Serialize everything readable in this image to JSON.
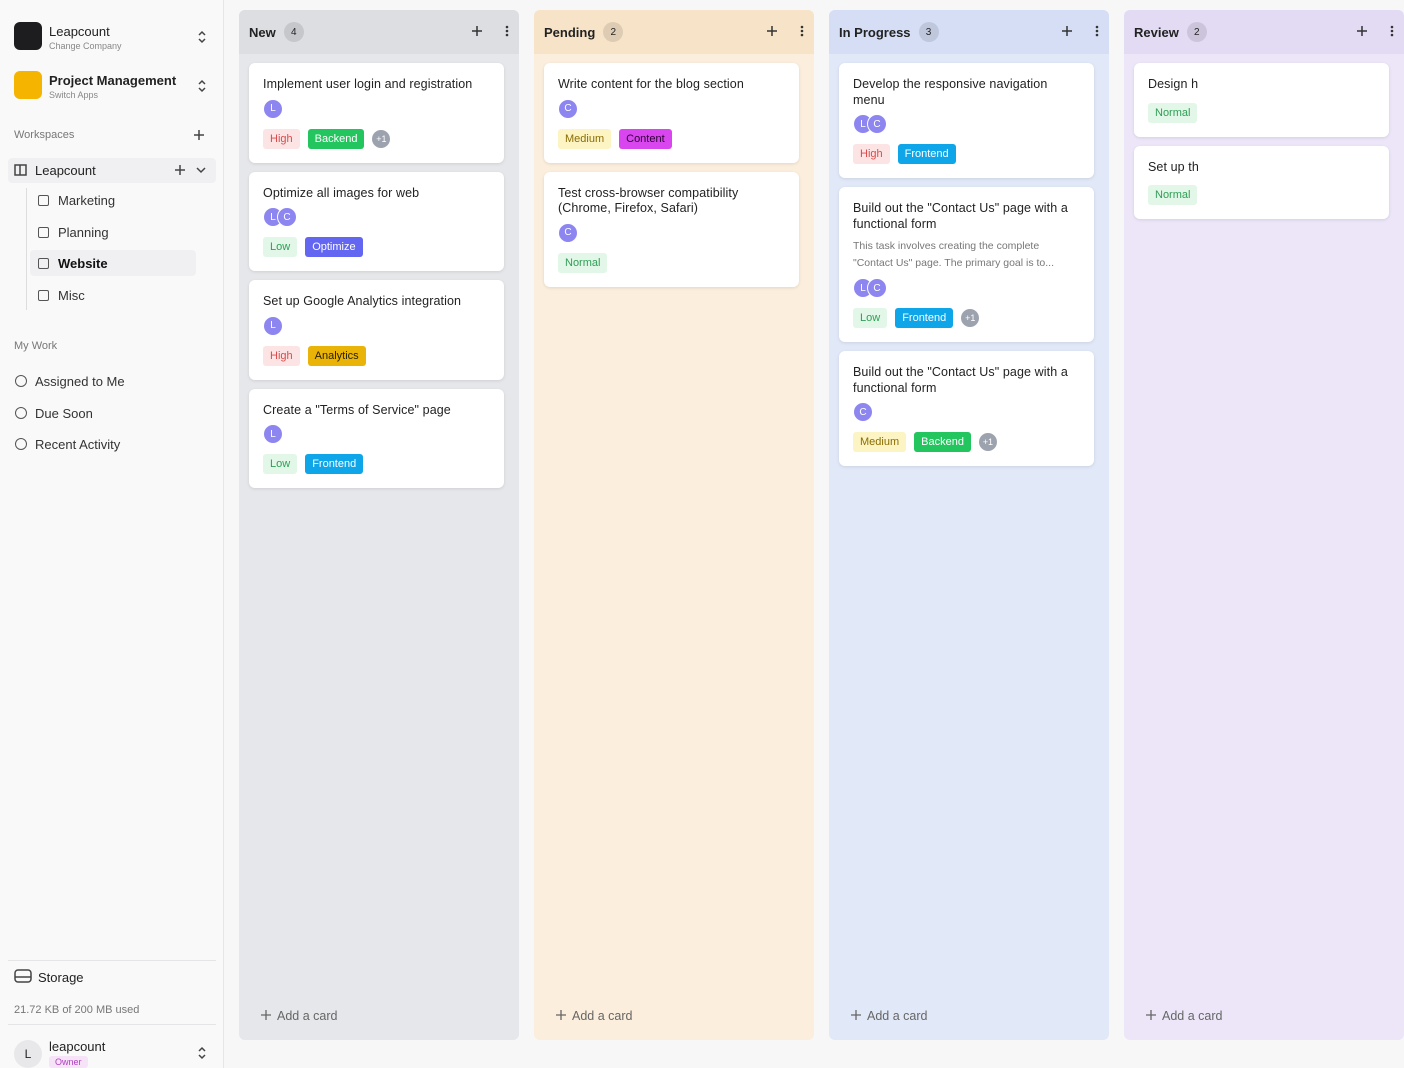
{
  "sidebar": {
    "org": {
      "name": "Leapcount",
      "subtitle": "Change Company"
    },
    "app": {
      "name": "Project Management",
      "subtitle": "Switch Apps"
    },
    "workspaces_label": "Workspaces",
    "workspace": {
      "name": "Leapcount",
      "boards": [
        "Marketing",
        "Planning",
        "Website",
        "Misc"
      ]
    },
    "my_work_label": "My Work",
    "my_work": [
      "Assigned to Me",
      "Due Soon",
      "Recent Activity"
    ],
    "storage": {
      "label": "Storage",
      "usage": "21.72 KB of 200 MB used"
    },
    "user": {
      "initial": "L",
      "name": "leapcount",
      "role": "Owner"
    }
  },
  "columns": [
    {
      "title": "New",
      "count": 4,
      "color": "#e6e7ea",
      "header_color": "#dcdee2",
      "add_label": "Add a card",
      "cards": [
        {
          "title": "Implement user login and registration",
          "avatars": [
            "L"
          ],
          "priority": {
            "label": "High",
            "color": "#dc4a4a",
            "background": "#fde4e4"
          },
          "tag": {
            "label": "Backend",
            "color": "#22c55e",
            "text": "#ffffff"
          },
          "extra": "+1"
        },
        {
          "title": "Optimize all images for web",
          "avatars": [
            "L",
            "C"
          ],
          "priority": {
            "label": "Low",
            "color": "#2f9e55",
            "background": "#e2f7e8"
          },
          "tag": {
            "label": "Optimize",
            "color": "#6366f1",
            "text": "#ffffff"
          }
        },
        {
          "title": "Set up Google Analytics integration",
          "avatars": [
            "L"
          ],
          "priority": {
            "label": "High",
            "color": "#dc4a4a",
            "background": "#fde4e4"
          },
          "tag": {
            "label": "Analytics",
            "color": "#eab308",
            "text": "#2a2100"
          }
        },
        {
          "title": "Create a \"Terms of Service\" page",
          "avatars": [
            "L"
          ],
          "priority": {
            "label": "Low",
            "color": "#2f9e55",
            "background": "#e2f7e8"
          },
          "tag": {
            "label": "Frontend",
            "color": "#0ea5e9",
            "text": "#ffffff"
          }
        }
      ]
    },
    {
      "title": "Pending",
      "count": 2,
      "color": "#fbeedc",
      "header_color": "#f7e4c8",
      "add_label": "Add a card",
      "cards": [
        {
          "title": "Write content for the blog section",
          "avatars": [
            "C"
          ],
          "priority": {
            "label": "Medium",
            "color": "#8a6d00",
            "background": "#fdf4c4"
          },
          "tag": {
            "label": "Content",
            "color": "#d946ef",
            "text": "#2a0030"
          }
        },
        {
          "title": "Test cross-browser compatibility (Chrome, Firefox, Safari)",
          "avatars": [
            "C"
          ],
          "priority": {
            "label": "Normal",
            "color": "#2f9e55",
            "background": "#e2f7e8"
          }
        }
      ]
    },
    {
      "title": "In Progress",
      "count": 3,
      "color": "#e1e8f8",
      "header_color": "#d5def5",
      "add_label": "Add a card",
      "cards": [
        {
          "title": "Develop the responsive navigation menu",
          "avatars": [
            "L",
            "C"
          ],
          "priority": {
            "label": "High",
            "color": "#dc4a4a",
            "background": "#fde4e4"
          },
          "tag": {
            "label": "Frontend",
            "color": "#0ea5e9",
            "text": "#ffffff"
          }
        },
        {
          "title": "Build out the \"Contact Us\" page with a functional form",
          "description": "This task involves creating the complete \"Contact Us\" page. The primary goal is to...",
          "avatars": [
            "L",
            "C"
          ],
          "priority": {
            "label": "Low",
            "color": "#2f9e55",
            "background": "#e2f7e8"
          },
          "tag": {
            "label": "Frontend",
            "color": "#0ea5e9",
            "text": "#ffffff"
          },
          "extra": "+1"
        },
        {
          "title": "Build out the \"Contact Us\" page with a functional form",
          "avatars": [
            "C"
          ],
          "priority": {
            "label": "Medium",
            "color": "#8a6d00",
            "background": "#fdf4c4"
          },
          "tag": {
            "label": "Backend",
            "color": "#22c55e",
            "text": "#ffffff"
          },
          "extra": "+1"
        }
      ]
    },
    {
      "title": "Review",
      "count": 2,
      "color": "#ece6f8",
      "header_color": "#e3dbf4",
      "add_label": "Add a card",
      "cards": [
        {
          "title": "Design h",
          "priority": {
            "label": "Normal",
            "color": "#2f9e55",
            "background": "#e2f7e8"
          }
        },
        {
          "title": "Set up th",
          "priority": {
            "label": "Normal",
            "color": "#2f9e55",
            "background": "#e2f7e8"
          }
        }
      ]
    }
  ]
}
